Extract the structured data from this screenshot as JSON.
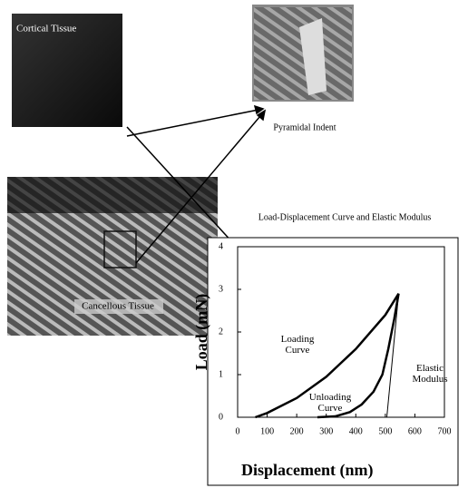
{
  "labels": {
    "cortical": "Cortical Tissue",
    "indent": "Pyramidal Indent",
    "cancellous": "Cancellous Tissue"
  },
  "chart_data": {
    "type": "line",
    "title": "Load-Displacement Curve and Elastic Modulus",
    "xlabel": "Displacement   (nm)",
    "ylabel": "Load   (mN)",
    "xlim": [
      0,
      700
    ],
    "xticks": [
      0,
      100,
      200,
      300,
      400,
      500,
      600,
      700
    ],
    "ylim": [
      0,
      4
    ],
    "yticks": [
      0,
      1,
      2,
      3,
      4
    ],
    "series": [
      {
        "name": "Loading Curve",
        "color": "#000000",
        "x": [
          60,
          100,
          200,
          300,
          400,
          500,
          545
        ],
        "values": [
          0,
          0.1,
          0.45,
          0.95,
          1.6,
          2.4,
          2.9
        ]
      },
      {
        "name": "Unloading Curve",
        "color": "#000000",
        "x": [
          545,
          530,
          510,
          490,
          460,
          420,
          380,
          330,
          270
        ],
        "values": [
          2.9,
          2.3,
          1.6,
          1.0,
          0.6,
          0.3,
          0.12,
          0.02,
          0
        ]
      },
      {
        "name": "Elastic Modulus",
        "color": "#000000",
        "x": [
          545,
          505
        ],
        "values": [
          2.9,
          0
        ]
      }
    ]
  }
}
